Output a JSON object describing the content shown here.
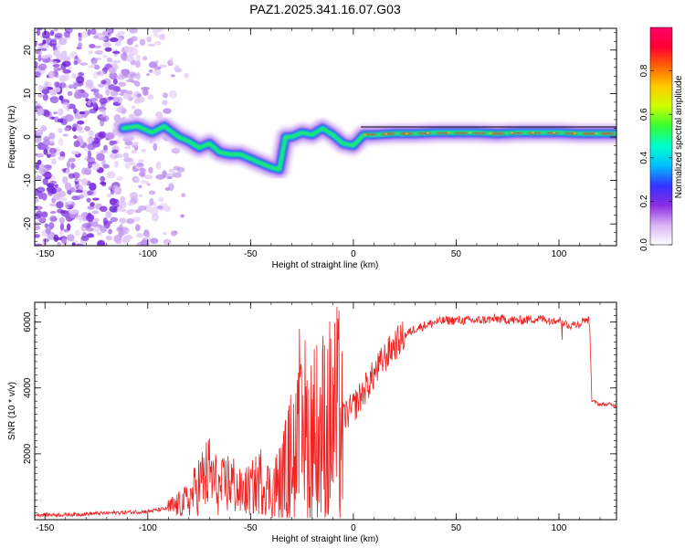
{
  "chart_data": [
    {
      "type": "heatmap",
      "title": "PAZ1.2025.341.16.07.G03",
      "xlabel": "Height of straight line (km)",
      "ylabel": "Frequency (Hz)",
      "xlim": [
        -155,
        128
      ],
      "ylim": [
        -25,
        25
      ],
      "xticks": [
        -150,
        -100,
        -50,
        0,
        50,
        100
      ],
      "yticks": [
        -20,
        -10,
        0,
        10,
        20
      ],
      "colorbar": {
        "label": "Normalized spectral amplitude",
        "range": [
          0,
          1
        ],
        "ticks": [
          0.0,
          0.2,
          0.4,
          0.6,
          0.8
        ],
        "stops": [
          "#ffffff",
          "#d9b3f5",
          "#8a2be2",
          "#3333ff",
          "#00bfff",
          "#00ffcc",
          "#33ff33",
          "#ccff00",
          "#ffcc00",
          "#ff6600",
          "#ff0033",
          "#ff0066"
        ]
      },
      "ridge": {
        "x": [
          -112,
          -105,
          -98,
          -92,
          -85,
          -80,
          -75,
          -70,
          -65,
          -60,
          -55,
          -50,
          -45,
          -40,
          -36,
          -33,
          -30,
          -25,
          -20,
          -15,
          -10,
          -5,
          0,
          5,
          10,
          20,
          30,
          40,
          50,
          60,
          70,
          80,
          90,
          100,
          110,
          120,
          128
        ],
        "y": [
          2,
          2.5,
          1,
          2.5,
          0,
          -1,
          -2.5,
          -1.5,
          -3.5,
          -4,
          -4,
          -5,
          -6,
          -7,
          -7.5,
          0,
          0,
          1,
          0.5,
          2,
          0.5,
          -1.5,
          -2,
          0.5,
          0.5,
          0.8,
          0.8,
          1,
          1,
          1,
          0.8,
          1,
          1,
          1,
          0.8,
          0.8,
          0.8
        ]
      }
    },
    {
      "type": "line",
      "xlabel": "Height of straight line (km)",
      "ylabel": "SNR (10 * v/v)",
      "xlim": [
        -155,
        128
      ],
      "ylim": [
        0,
        6600
      ],
      "xticks": [
        -150,
        -100,
        -50,
        0,
        50,
        100
      ],
      "yticks": [
        2000,
        4000,
        6000
      ],
      "series": [
        {
          "name": "SNR",
          "color": "#ee2222",
          "x": [
            -155,
            -140,
            -120,
            -100,
            -90,
            -85,
            -80,
            -75,
            -70,
            -65,
            -60,
            -55,
            -50,
            -45,
            -40,
            -35,
            -30,
            -25,
            -20,
            -15,
            -10,
            -5,
            0,
            5,
            10,
            15,
            20,
            25,
            30,
            35,
            40,
            45,
            50,
            60,
            70,
            80,
            90,
            100,
            105,
            110,
            113,
            115,
            116,
            120,
            125,
            128
          ],
          "y": [
            150,
            150,
            200,
            250,
            350,
            450,
            600,
            1100,
            1400,
            900,
            1200,
            800,
            900,
            1200,
            900,
            1100,
            1900,
            2200,
            2500,
            2700,
            2900,
            3100,
            3400,
            3900,
            4400,
            4900,
            5300,
            5600,
            5800,
            5900,
            6000,
            6050,
            6050,
            6050,
            6100,
            6050,
            6100,
            6050,
            5900,
            5950,
            6100,
            6000,
            3600,
            3500,
            3500,
            3450
          ]
        }
      ]
    }
  ]
}
